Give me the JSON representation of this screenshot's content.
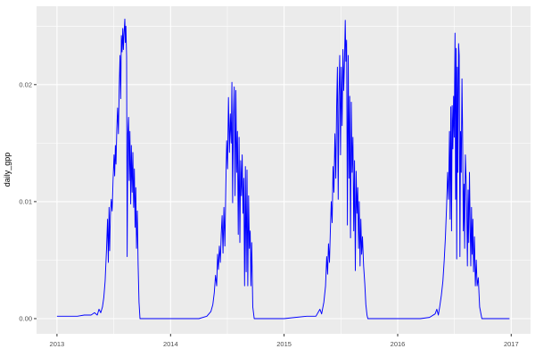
{
  "chart_data": {
    "type": "line",
    "title": "",
    "xlabel": "",
    "ylabel": "daily_gpp",
    "legend": "none",
    "grid": "major+minor",
    "x_ticks": [
      2013,
      2014,
      2015,
      2016,
      2017
    ],
    "x_tick_labels": [
      "2013",
      "2014",
      "2015",
      "2016",
      "2017"
    ],
    "x_minor_ticks": [
      2013.5,
      2014.5,
      2015.5,
      2016.5
    ],
    "y_ticks": [
      0.0,
      0.01,
      0.02
    ],
    "y_tick_labels": [
      "0.00",
      "0.01",
      "0.02"
    ],
    "y_minor_ticks": [
      0.005,
      0.015,
      0.025
    ],
    "xlim": [
      2012.82,
      2017.17
    ],
    "ylim": [
      -0.0013,
      0.0267
    ],
    "styles": {
      "line_color": "#0000FF",
      "panel_background": "#EBEBEB",
      "gridline_color": "#FFFFFF",
      "axis_text_color": "#4D4D4D",
      "axis_title_color": "#000000",
      "tick_mark_color": "#333333"
    },
    "series": [
      {
        "name": "daily_gpp",
        "x": [
          2013.0,
          2013.06,
          2013.12,
          2013.18,
          2013.24,
          2013.3,
          2013.33,
          2013.355,
          2013.37,
          2013.385,
          2013.4,
          2013.412,
          2013.424,
          2013.436,
          2013.445,
          2013.452,
          2013.458,
          2013.464,
          2013.47,
          2013.478,
          2013.486,
          2013.494,
          2013.502,
          2013.508,
          2013.514,
          2013.52,
          2013.527,
          2013.534,
          2013.541,
          2013.548,
          2013.555,
          2013.561,
          2013.567,
          2013.573,
          2013.579,
          2013.585,
          2013.591,
          2013.597,
          2013.602,
          2013.607,
          2013.613,
          2013.618,
          2013.624,
          2013.63,
          2013.636,
          2013.642,
          2013.649,
          2013.655,
          2013.662,
          2013.668,
          2013.675,
          2013.681,
          2013.688,
          2013.694,
          2013.7,
          2013.707,
          2013.714,
          2013.722,
          2013.731,
          2013.76,
          2013.85,
          2013.95,
          2014.05,
          2014.15,
          2014.25,
          2014.32,
          2014.355,
          2014.372,
          2014.385,
          2014.396,
          2014.406,
          2014.414,
          2014.422,
          2014.43,
          2014.438,
          2014.446,
          2014.454,
          2014.462,
          2014.47,
          2014.478,
          2014.486,
          2014.494,
          2014.502,
          2014.51,
          2014.518,
          2014.526,
          2014.534,
          2014.54,
          2014.547,
          2014.554,
          2014.561,
          2014.568,
          2014.575,
          2014.582,
          2014.589,
          2014.596,
          2014.603,
          2014.61,
          2014.617,
          2014.624,
          2014.631,
          2014.638,
          2014.645,
          2014.652,
          2014.659,
          2014.666,
          2014.673,
          2014.68,
          2014.687,
          2014.694,
          2014.701,
          2014.708,
          2014.715,
          2014.724,
          2014.737,
          2014.8,
          2014.9,
          2015.0,
          2015.1,
          2015.2,
          2015.28,
          2015.315,
          2015.33,
          2015.35,
          2015.365,
          2015.375,
          2015.383,
          2015.391,
          2015.399,
          2015.407,
          2015.415,
          2015.423,
          2015.431,
          2015.439,
          2015.447,
          2015.455,
          2015.462,
          2015.469,
          2015.476,
          2015.483,
          2015.49,
          2015.497,
          2015.504,
          2015.511,
          2015.518,
          2015.525,
          2015.531,
          2015.538,
          2015.544,
          2015.55,
          2015.557,
          2015.564,
          2015.571,
          2015.578,
          2015.585,
          2015.592,
          2015.599,
          2015.606,
          2015.613,
          2015.62,
          2015.627,
          2015.634,
          2015.641,
          2015.648,
          2015.655,
          2015.662,
          2015.669,
          2015.676,
          2015.683,
          2015.69,
          2015.7,
          2015.71,
          2015.72,
          2015.73,
          2015.737,
          2015.8,
          2015.9,
          2016.0,
          2016.1,
          2016.2,
          2016.28,
          2016.33,
          2016.345,
          2016.358,
          2016.37,
          2016.385,
          2016.398,
          2016.41,
          2016.42,
          2016.43,
          2016.44,
          2016.448,
          2016.456,
          2016.462,
          2016.468,
          2016.474,
          2016.48,
          2016.486,
          2016.492,
          2016.498,
          2016.505,
          2016.51,
          2016.515,
          2016.52,
          2016.525,
          2016.53,
          2016.536,
          2016.542,
          2016.548,
          2016.554,
          2016.56,
          2016.566,
          2016.572,
          2016.578,
          2016.584,
          2016.59,
          2016.596,
          2016.602,
          2016.608,
          2016.614,
          2016.62,
          2016.626,
          2016.632,
          2016.638,
          2016.644,
          2016.65,
          2016.656,
          2016.662,
          2016.668,
          2016.676,
          2016.684,
          2016.692,
          2016.7,
          2016.71,
          2016.722,
          2016.741,
          2016.8,
          2016.9,
          2016.985
        ],
        "y": [
          0.0002,
          0.0002,
          0.0002,
          0.0002,
          0.0003,
          0.0003,
          0.0005,
          0.0003,
          0.0008,
          0.0005,
          0.001,
          0.0018,
          0.0032,
          0.006,
          0.0085,
          0.0048,
          0.0095,
          0.0058,
          0.0088,
          0.0102,
          0.0092,
          0.0118,
          0.014,
          0.0122,
          0.0148,
          0.0132,
          0.0162,
          0.018,
          0.0158,
          0.0198,
          0.0225,
          0.0188,
          0.0242,
          0.0228,
          0.0248,
          0.023,
          0.0245,
          0.0256,
          0.0236,
          0.025,
          0.0224,
          0.0053,
          0.0158,
          0.0172,
          0.0118,
          0.016,
          0.0098,
          0.0148,
          0.0108,
          0.0142,
          0.0095,
          0.0128,
          0.0078,
          0.0112,
          0.006,
          0.0092,
          0.0046,
          0.0014,
          0.0,
          0.0,
          0.0,
          0.0,
          0.0,
          0.0,
          0.0,
          0.0002,
          0.0006,
          0.0012,
          0.0022,
          0.0037,
          0.0028,
          0.0055,
          0.0042,
          0.0062,
          0.0048,
          0.0072,
          0.0088,
          0.0056,
          0.0095,
          0.0062,
          0.011,
          0.0152,
          0.0128,
          0.0189,
          0.0142,
          0.0175,
          0.015,
          0.0202,
          0.0099,
          0.0172,
          0.0198,
          0.0105,
          0.0195,
          0.0125,
          0.016,
          0.0072,
          0.0155,
          0.0065,
          0.0135,
          0.0105,
          0.014,
          0.009,
          0.012,
          0.0028,
          0.013,
          0.004,
          0.0127,
          0.0028,
          0.0105,
          0.006,
          0.0075,
          0.0028,
          0.0065,
          0.001,
          0.0,
          0.0,
          0.0,
          0.0,
          0.0001,
          0.0002,
          0.0002,
          0.0008,
          0.0004,
          0.0014,
          0.0028,
          0.0053,
          0.0038,
          0.0064,
          0.0048,
          0.0075,
          0.01,
          0.0082,
          0.013,
          0.0108,
          0.0158,
          0.012,
          0.018,
          0.0215,
          0.0102,
          0.019,
          0.0225,
          0.014,
          0.0215,
          0.0165,
          0.023,
          0.0195,
          0.0218,
          0.0255,
          0.022,
          0.0238,
          0.008,
          0.0225,
          0.012,
          0.019,
          0.0069,
          0.0185,
          0.0125,
          0.0155,
          0.0075,
          0.0135,
          0.0041,
          0.0126,
          0.009,
          0.0112,
          0.006,
          0.01,
          0.0045,
          0.0085,
          0.0055,
          0.007,
          0.0045,
          0.003,
          0.0012,
          0.0003,
          0.0,
          0.0,
          0.0,
          0.0,
          0.0,
          0.0,
          0.0001,
          0.0004,
          0.0008,
          0.0003,
          0.001,
          0.002,
          0.0032,
          0.005,
          0.0069,
          0.0095,
          0.0125,
          0.0102,
          0.016,
          0.0085,
          0.0181,
          0.0075,
          0.0182,
          0.0145,
          0.019,
          0.0155,
          0.0244,
          0.0102,
          0.0231,
          0.0051,
          0.0215,
          0.0125,
          0.0235,
          0.0225,
          0.0053,
          0.016,
          0.0125,
          0.0205,
          0.016,
          0.0075,
          0.0115,
          0.006,
          0.014,
          0.012,
          0.0095,
          0.0045,
          0.011,
          0.0065,
          0.0125,
          0.0085,
          0.0045,
          0.0095,
          0.0055,
          0.0085,
          0.004,
          0.007,
          0.0028,
          0.005,
          0.0028,
          0.0035,
          0.001,
          0.0,
          0.0,
          0.0,
          0.0
        ]
      }
    ]
  }
}
